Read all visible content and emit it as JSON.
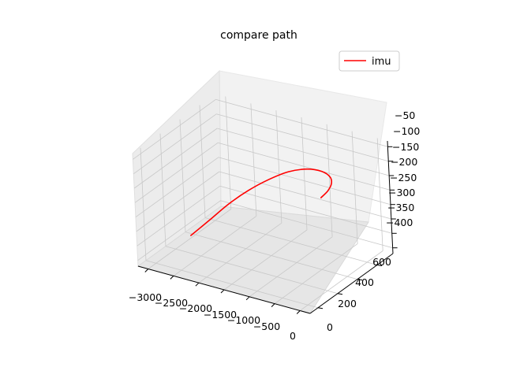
{
  "chart_data": {
    "type": "line",
    "projection": "3d",
    "title": "compare path",
    "xlabel": "",
    "ylabel": "",
    "zlabel": "",
    "grid": true,
    "legend_position": "top-right",
    "x_ticks": [
      "−3000",
      "−2500",
      "−2000",
      "−1500",
      "−1000",
      "−500",
      "0"
    ],
    "y_ticks": [
      "0",
      "200",
      "400",
      "600"
    ],
    "z_ticks": [
      "−50",
      "−100",
      "−150",
      "−200",
      "−250",
      "−300",
      "−350",
      "−400"
    ],
    "series": [
      {
        "name": "imu",
        "color": "#ff0000",
        "x": [
          -2460,
          -2200,
          -1950,
          -1700,
          -1450,
          -1200,
          -980,
          -820,
          -740,
          -760,
          -820,
          -900
        ],
        "y": [
          90,
          150,
          220,
          300,
          380,
          460,
          540,
          600,
          640,
          660,
          650,
          620
        ],
        "z": [
          -320,
          -270,
          -220,
          -180,
          -150,
          -130,
          -130,
          -145,
          -170,
          -200,
          -225,
          -245
        ]
      }
    ]
  }
}
